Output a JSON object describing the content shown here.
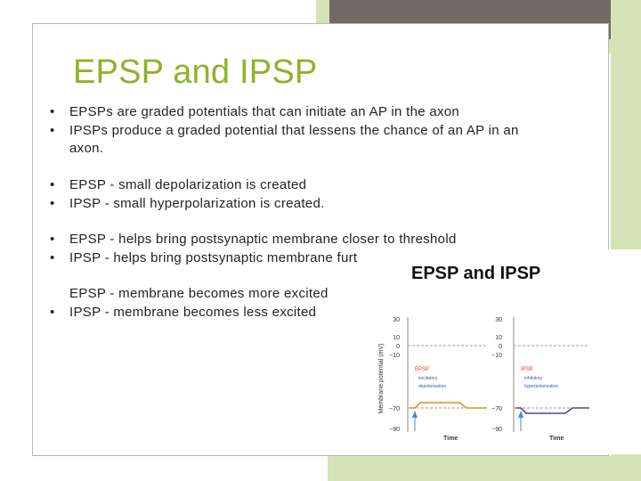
{
  "slide": {
    "title": "EPSP and IPSP",
    "bullet_glyph": "•",
    "groups": [
      [
        {
          "bullet": true,
          "text": "EPSPs are graded potentials that can initiate an AP in the axon"
        },
        {
          "bullet": true,
          "text": "IPSPs produce a graded potential that lessens the chance of an AP in an"
        },
        {
          "bullet": false,
          "text": "axon."
        }
      ],
      [
        {
          "bullet": true,
          "text": "EPSP - small depolarization is created"
        },
        {
          "bullet": true,
          "text": "IPSP - small hyperpolarization is created."
        }
      ],
      [
        {
          "bullet": true,
          "text": "EPSP - helps bring postsynaptic membrane closer to threshold"
        },
        {
          "bullet": true,
          "text": "IPSP - helps bring postsynaptic membrane further from threshold."
        }
      ],
      [
        {
          "bullet": false,
          "text": "EPSP - membrane becomes more excited"
        },
        {
          "bullet": true,
          "text": "IPSP - membrane becomes less excited"
        }
      ]
    ]
  },
  "figure": {
    "title": "EPSP and IPSP",
    "colors": {
      "epsp": "#e0901e",
      "ipsp": "#5b3f8a",
      "threshold": "#9c9c9c",
      "red": "#d23a2a",
      "blue": "#3a5aa8",
      "arrow": "#4a86c8"
    },
    "chart_data": [
      {
        "type": "line",
        "ylabel": "Membrane potential (mV)",
        "xlabel": "Time",
        "yticks": [
          "30",
          "10",
          "0",
          "−10",
          "−70",
          "−90"
        ],
        "label_red": "EPSP",
        "label_blue_1": "excitatory",
        "label_blue_2": "depolarization",
        "resting": -70,
        "peak": -66
      },
      {
        "type": "line",
        "ylabel": "",
        "xlabel": "Time",
        "yticks": [
          "30",
          "10",
          "0",
          "−10",
          "−70",
          "−90"
        ],
        "label_red": "IPSP",
        "label_blue_1": "inhibitory",
        "label_blue_2": "hyperpolarization",
        "resting": -70,
        "peak": -74
      }
    ]
  }
}
